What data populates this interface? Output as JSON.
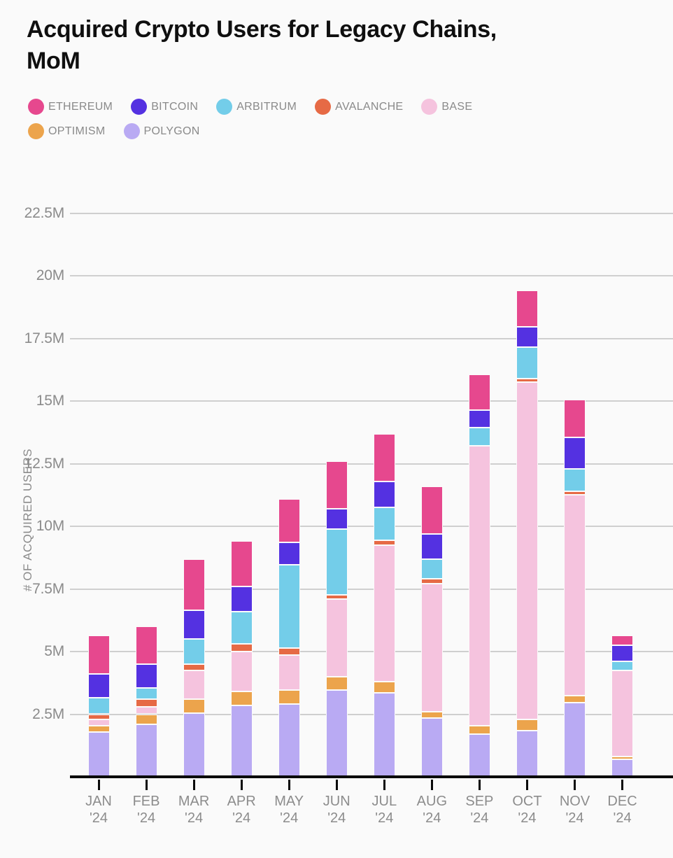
{
  "title": "Acquired Crypto Users for Legacy Chains, MoM",
  "colors": {
    "background": "#fafafa",
    "grid": "#cfcfcf",
    "axis": "#0a0a0a",
    "muted_text": "#8b8b8b",
    "title_text": "#0f0f0f",
    "ethereum": "#e6488e",
    "bitcoin": "#5431e1",
    "arbitrum": "#73cde9",
    "avalanche": "#e66a45",
    "base": "#f5c3de",
    "optimism": "#eca44c",
    "polygon": "#b9aaf3"
  },
  "legend_order": [
    "ETHEREUM",
    "BITCOIN",
    "ARBITRUM",
    "AVALANCHE",
    "BASE",
    "OPTIMISM",
    "POLYGON"
  ],
  "chart_data": {
    "type": "bar",
    "stacked": true,
    "title": "Acquired Crypto Users for Legacy Chains, MoM",
    "xlabel": "",
    "ylabel": "# OF ACQUIRED USERS",
    "units": "M",
    "ylim": [
      0,
      22.5
    ],
    "ytick_values": [
      2.5,
      5,
      7.5,
      10,
      12.5,
      15,
      17.5,
      20,
      22.5
    ],
    "ytick_labels": [
      "2.5M",
      "5M",
      "7.5M",
      "10M",
      "12.5M",
      "15M",
      "17.5M",
      "20M",
      "22.5M"
    ],
    "grid": "horizontal-only",
    "legend_position": "top",
    "categories": [
      "JAN '24",
      "FEB '24",
      "MAR '24",
      "APR '24",
      "MAY '24",
      "JUN '24",
      "JUL '24",
      "AUG '24",
      "SEP '24",
      "OCT '24",
      "NOV '24",
      "DEC '24"
    ],
    "stack_order": "bottom_to_top",
    "series": [
      {
        "name": "POLYGON",
        "color_key": "polygon",
        "values": [
          1.8,
          2.1,
          2.55,
          2.85,
          2.9,
          3.45,
          3.35,
          2.35,
          1.7,
          1.85,
          2.95,
          0.7
        ]
      },
      {
        "name": "OPTIMISM",
        "color_key": "optimism",
        "values": [
          0.25,
          0.4,
          0.55,
          0.55,
          0.55,
          0.55,
          0.45,
          0.25,
          0.35,
          0.45,
          0.3,
          0.1
        ]
      },
      {
        "name": "BASE",
        "color_key": "base",
        "values": [
          0.25,
          0.3,
          1.15,
          1.6,
          1.4,
          3.1,
          5.45,
          5.1,
          11.15,
          13.45,
          8.0,
          3.45
        ]
      },
      {
        "name": "AVALANCHE",
        "color_key": "avalanche",
        "values": [
          0.2,
          0.3,
          0.25,
          0.3,
          0.3,
          0.15,
          0.2,
          0.2,
          0.0,
          0.15,
          0.15,
          0.0
        ]
      },
      {
        "name": "ARBITRUM",
        "color_key": "arbitrum",
        "values": [
          0.65,
          0.45,
          1.0,
          1.3,
          3.3,
          2.65,
          1.3,
          0.8,
          0.75,
          1.25,
          0.9,
          0.35
        ]
      },
      {
        "name": "BITCOIN",
        "color_key": "bitcoin",
        "values": [
          0.95,
          0.95,
          1.15,
          1.0,
          0.9,
          0.8,
          1.05,
          1.0,
          0.7,
          0.8,
          1.25,
          0.65
        ]
      },
      {
        "name": "ETHEREUM",
        "color_key": "ethereum",
        "values": [
          1.55,
          1.5,
          2.05,
          1.8,
          1.75,
          1.9,
          1.9,
          1.9,
          1.4,
          1.45,
          1.5,
          0.4
        ]
      }
    ],
    "totals": [
      5.65,
      6.0,
      8.7,
      9.4,
      11.1,
      12.6,
      13.7,
      11.6,
      16.05,
      19.4,
      15.05,
      5.65
    ]
  }
}
